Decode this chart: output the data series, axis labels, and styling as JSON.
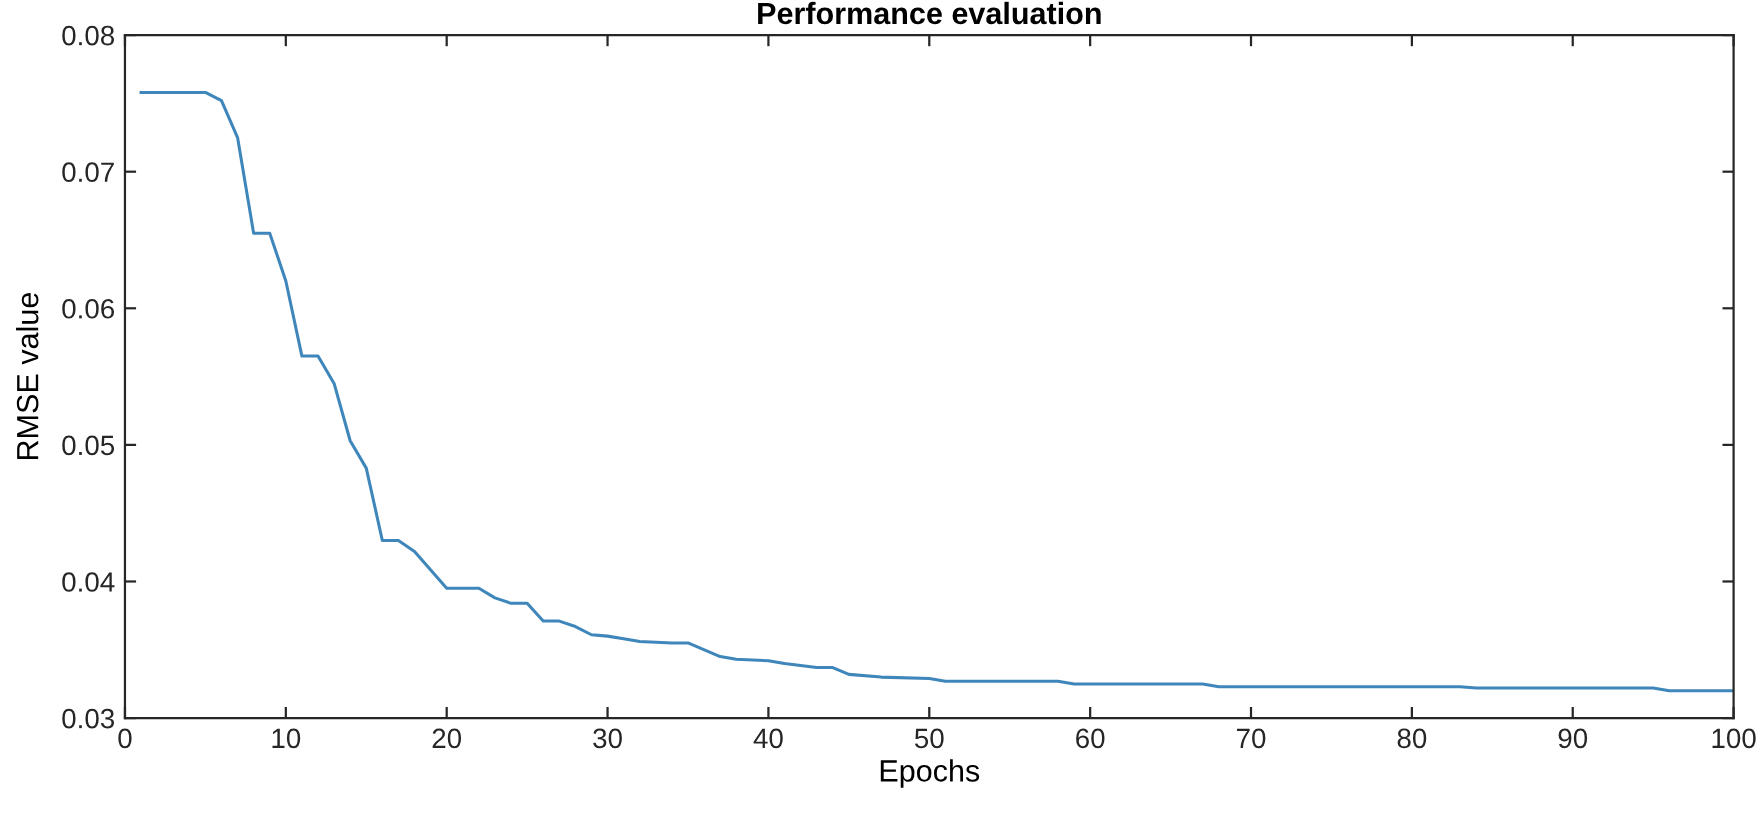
{
  "chart_data": {
    "type": "line",
    "title": "Performance evaluation",
    "xlabel": "Epochs",
    "ylabel": "RMSE value",
    "series": [
      {
        "color": "#3f86bb",
        "x": [
          1,
          5,
          6,
          7,
          8,
          9,
          10,
          11,
          12,
          13,
          14,
          15,
          16,
          17,
          18,
          20,
          22,
          23,
          24,
          25,
          26,
          27,
          28,
          29,
          30,
          31,
          32,
          34,
          35,
          37,
          38,
          40,
          41,
          43,
          44,
          45,
          47,
          50,
          51,
          58,
          59,
          67,
          68,
          83,
          84,
          95,
          96,
          100
        ],
        "values": [
          0.0758,
          0.0758,
          0.0752,
          0.0725,
          0.0655,
          0.0655,
          0.062,
          0.0565,
          0.0565,
          0.0545,
          0.0503,
          0.0483,
          0.043,
          0.043,
          0.0422,
          0.0395,
          0.0395,
          0.0388,
          0.0384,
          0.0384,
          0.0371,
          0.0371,
          0.0367,
          0.0361,
          0.036,
          0.0358,
          0.0356,
          0.0355,
          0.0355,
          0.0345,
          0.0343,
          0.0342,
          0.034,
          0.0337,
          0.0337,
          0.0332,
          0.033,
          0.0329,
          0.0327,
          0.0327,
          0.0325,
          0.0325,
          0.0323,
          0.0323,
          0.0322,
          0.0322,
          0.032,
          0.032
        ]
      }
    ],
    "xlim": [
      0,
      100
    ],
    "xticks": [
      0,
      10,
      20,
      30,
      40,
      50,
      60,
      70,
      80,
      90,
      100
    ],
    "ylim": [
      0.03,
      0.08
    ],
    "yticks": [
      {
        "value": 0.03,
        "label": "0.03"
      },
      {
        "value": 0.04,
        "label": "0.04"
      },
      {
        "value": 0.05,
        "label": "0.05"
      },
      {
        "value": 0.06,
        "label": "0.06"
      },
      {
        "value": 0.07,
        "label": "0.07"
      },
      {
        "value": 0.08,
        "label": "0.08"
      }
    ],
    "grid": false,
    "legend": false,
    "marker": "none",
    "line_style": "solid"
  }
}
